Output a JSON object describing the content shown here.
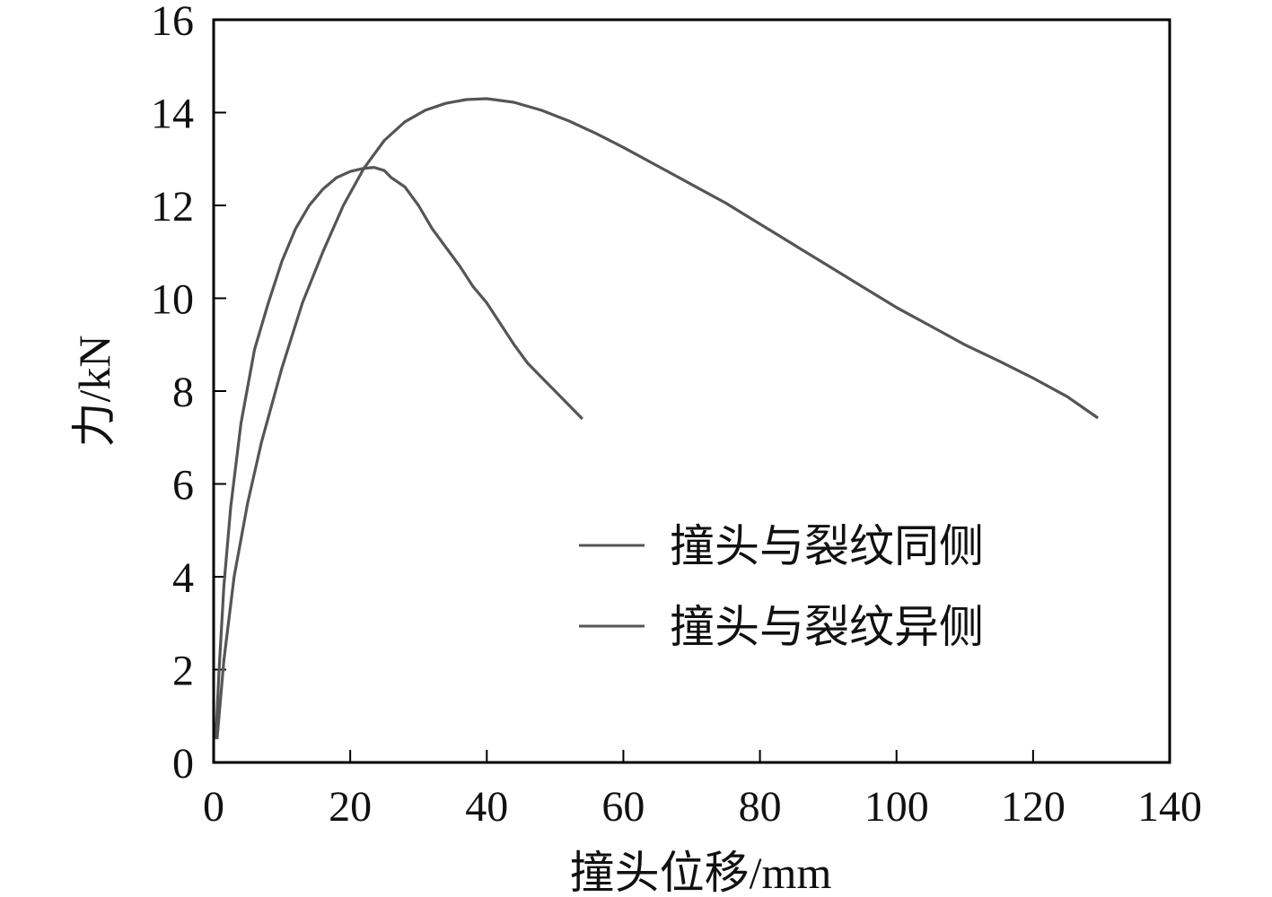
{
  "chart_data": {
    "type": "line",
    "xlabel": "撞头位移/mm",
    "ylabel": "力/kN",
    "xlim": [
      0,
      140
    ],
    "ylim": [
      0,
      16
    ],
    "xticks": [
      0,
      20,
      40,
      60,
      80,
      100,
      120,
      140
    ],
    "yticks": [
      0,
      2,
      4,
      6,
      8,
      10,
      12,
      14,
      16
    ],
    "grid": false,
    "legend_position": "lower-right",
    "colors": {
      "line": "#555555",
      "axis": "#000000"
    },
    "series": [
      {
        "name": "撞头与裂纹同侧",
        "points": [
          [
            0.3,
            0.5
          ],
          [
            0.8,
            2.0
          ],
          [
            1.5,
            3.8
          ],
          [
            2.5,
            5.5
          ],
          [
            4,
            7.3
          ],
          [
            6,
            8.9
          ],
          [
            8,
            9.9
          ],
          [
            10,
            10.8
          ],
          [
            12,
            11.5
          ],
          [
            14,
            12.0
          ],
          [
            16,
            12.35
          ],
          [
            18,
            12.6
          ],
          [
            20,
            12.73
          ],
          [
            22,
            12.8
          ],
          [
            23.5,
            12.82
          ],
          [
            25,
            12.75
          ],
          [
            26,
            12.6
          ],
          [
            28,
            12.4
          ],
          [
            30,
            12.0
          ],
          [
            32,
            11.5
          ],
          [
            34,
            11.1
          ],
          [
            36,
            10.7
          ],
          [
            38,
            10.25
          ],
          [
            40,
            9.9
          ],
          [
            42,
            9.45
          ],
          [
            44,
            9.0
          ],
          [
            46,
            8.6
          ],
          [
            48,
            8.3
          ],
          [
            50,
            8.0
          ],
          [
            52,
            7.7
          ],
          [
            54,
            7.4
          ]
        ]
      },
      {
        "name": "撞头与裂纹异侧",
        "points": [
          [
            0.5,
            0.5
          ],
          [
            1.5,
            2.2
          ],
          [
            3,
            4.0
          ],
          [
            5,
            5.6
          ],
          [
            7,
            6.9
          ],
          [
            10,
            8.5
          ],
          [
            13,
            9.9
          ],
          [
            16,
            11.0
          ],
          [
            19,
            12.0
          ],
          [
            22,
            12.8
          ],
          [
            25,
            13.4
          ],
          [
            28,
            13.8
          ],
          [
            31,
            14.05
          ],
          [
            34,
            14.2
          ],
          [
            37,
            14.28
          ],
          [
            40,
            14.3
          ],
          [
            44,
            14.22
          ],
          [
            48,
            14.05
          ],
          [
            52,
            13.82
          ],
          [
            56,
            13.55
          ],
          [
            60,
            13.25
          ],
          [
            65,
            12.85
          ],
          [
            70,
            12.45
          ],
          [
            75,
            12.05
          ],
          [
            80,
            11.6
          ],
          [
            85,
            11.15
          ],
          [
            90,
            10.7
          ],
          [
            95,
            10.25
          ],
          [
            100,
            9.8
          ],
          [
            105,
            9.4
          ],
          [
            110,
            9.0
          ],
          [
            115,
            8.65
          ],
          [
            120,
            8.28
          ],
          [
            125,
            7.88
          ],
          [
            129.5,
            7.42
          ]
        ]
      }
    ]
  }
}
